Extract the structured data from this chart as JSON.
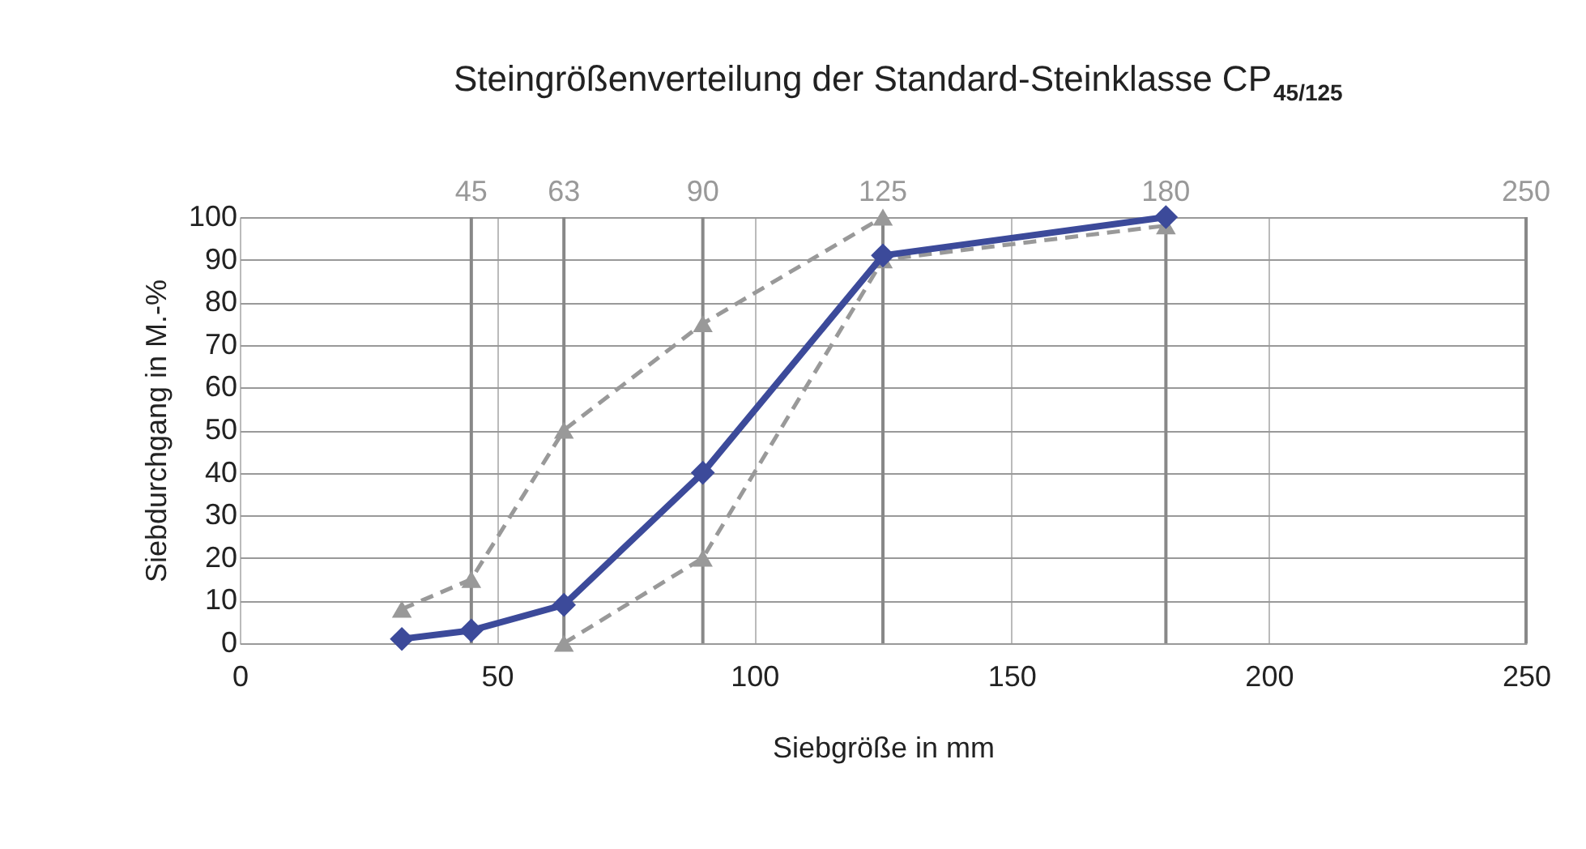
{
  "chart_data": {
    "type": "line",
    "title": "Steingrößenverteilung der Standard-Steinklasse CP$_{45/125}$",
    "xlabel": "Siebgröße in mm",
    "ylabel": "Siebdurchgang in M.-%",
    "xlim": [
      0,
      250
    ],
    "xticks": [
      0,
      50,
      100,
      150,
      200,
      250
    ],
    "ylim": [
      0,
      100
    ],
    "yticks": [
      0,
      10,
      20,
      30,
      40,
      50,
      60,
      70,
      80,
      90,
      100
    ],
    "x2lim": [
      0,
      250
    ],
    "x2ticks": [
      45,
      63,
      90,
      125,
      180,
      250
    ],
    "grid": true,
    "series": [
      {
        "color": "#999999",
        "marker": "triangle",
        "line_style": "dashed",
        "x": [
          31.5,
          45,
          63,
          90,
          125
        ],
        "values": [
          8,
          15,
          50,
          75,
          100
        ]
      },
      {
        "color": "#999999",
        "marker": "triangle",
        "line_style": "dashed",
        "x": [
          63,
          90,
          125,
          180
        ],
        "values": [
          0,
          20,
          90,
          98
        ]
      },
      {
        "color": "#3c4a9a",
        "marker": "diamond",
        "line_style": "solid",
        "x": [
          31.5,
          45,
          63,
          90,
          125,
          180
        ],
        "values": [
          1,
          3,
          9,
          40,
          91,
          100
        ]
      }
    ]
  }
}
